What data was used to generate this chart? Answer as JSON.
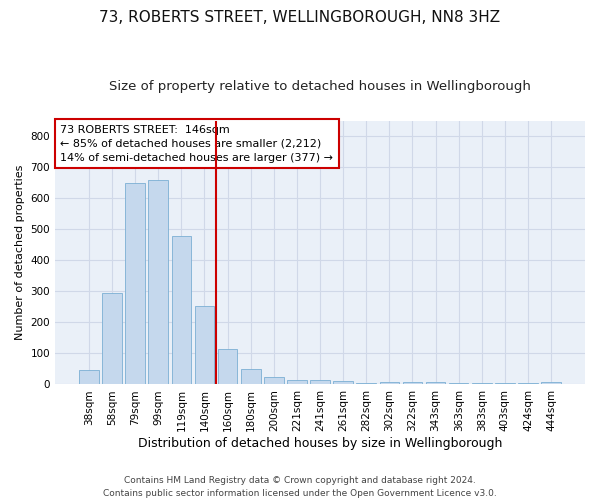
{
  "title": "73, ROBERTS STREET, WELLINGBOROUGH, NN8 3HZ",
  "subtitle": "Size of property relative to detached houses in Wellingborough",
  "xlabel": "Distribution of detached houses by size in Wellingborough",
  "ylabel": "Number of detached properties",
  "categories": [
    "38sqm",
    "58sqm",
    "79sqm",
    "99sqm",
    "119sqm",
    "140sqm",
    "160sqm",
    "180sqm",
    "200sqm",
    "221sqm",
    "241sqm",
    "261sqm",
    "282sqm",
    "302sqm",
    "322sqm",
    "343sqm",
    "363sqm",
    "383sqm",
    "403sqm",
    "424sqm",
    "444sqm"
  ],
  "values": [
    45,
    293,
    650,
    660,
    478,
    253,
    115,
    50,
    25,
    15,
    15,
    10,
    5,
    8,
    8,
    8,
    5,
    5,
    5,
    5,
    8
  ],
  "bar_color": "#c5d8ed",
  "bar_edge_color": "#7bafd4",
  "vline_x": 5.5,
  "vline_color": "#cc0000",
  "annotation_line1": "73 ROBERTS STREET:  146sqm",
  "annotation_line2": "← 85% of detached houses are smaller (2,212)",
  "annotation_line3": "14% of semi-detached houses are larger (377) →",
  "annotation_box_color": "#ffffff",
  "annotation_box_edge": "#cc0000",
  "grid_color": "#d0d8e8",
  "background_color": "#eaf0f8",
  "ylim": [
    0,
    850
  ],
  "yticks": [
    0,
    100,
    200,
    300,
    400,
    500,
    600,
    700,
    800
  ],
  "footer": "Contains HM Land Registry data © Crown copyright and database right 2024.\nContains public sector information licensed under the Open Government Licence v3.0.",
  "title_fontsize": 11,
  "subtitle_fontsize": 9.5,
  "xlabel_fontsize": 9,
  "ylabel_fontsize": 8,
  "tick_fontsize": 7.5,
  "annotation_fontsize": 8,
  "footer_fontsize": 6.5
}
